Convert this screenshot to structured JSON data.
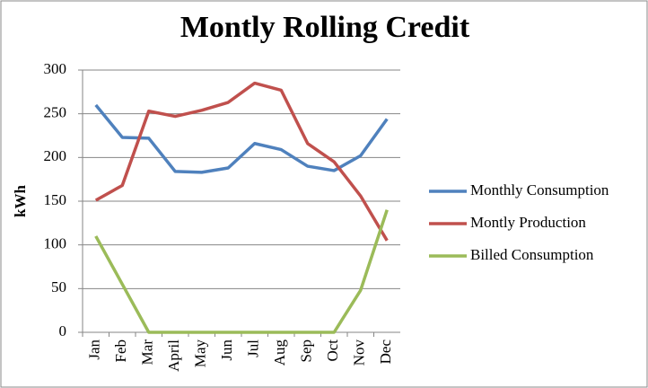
{
  "chart_data": {
    "type": "line",
    "title": "Montly Rolling Credit",
    "y_label": "kWh",
    "categories": [
      "Jan",
      "Feb",
      "Mar",
      "April",
      "May",
      "Jun",
      "Jul",
      "Aug",
      "Sep",
      "Oct",
      "Nov",
      "Dec"
    ],
    "series": [
      {
        "name": "Monthly Consumption",
        "color": "#4f81bd",
        "values": [
          260,
          223,
          222,
          184,
          183,
          188,
          216,
          209,
          190,
          185,
          202,
          244
        ]
      },
      {
        "name": "Montly Production",
        "color": "#c0504d",
        "values": [
          151,
          168,
          253,
          247,
          254,
          263,
          285,
          277,
          216,
          195,
          156,
          105
        ]
      },
      {
        "name": "Billed Consumption",
        "color": "#9bbb59",
        "values": [
          110,
          55,
          0,
          0,
          0,
          0,
          0,
          0,
          0,
          0,
          48,
          140
        ]
      }
    ],
    "ylim": [
      0,
      300
    ],
    "yticks": [
      0,
      50,
      100,
      150,
      200,
      250,
      300
    ],
    "grid": true,
    "legend": "right"
  }
}
